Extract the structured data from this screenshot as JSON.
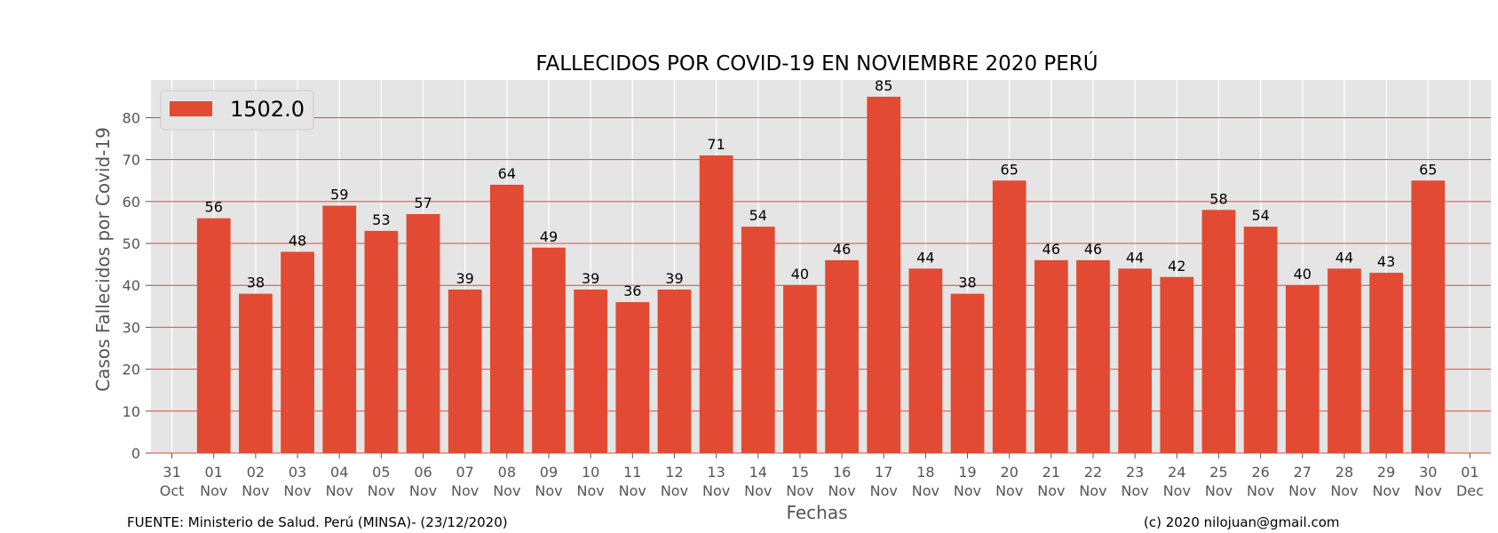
{
  "chart_data": {
    "type": "bar",
    "title": "FALLECIDOS POR COVID-19 EN NOVIEMBRE 2020 PERÚ",
    "xlabel": "Fechas",
    "ylabel": "Casos Fallecidos por Covid-19",
    "ylim": [
      0,
      89
    ],
    "yticks": [
      0,
      10,
      20,
      30,
      40,
      50,
      60,
      70,
      80
    ],
    "grid": true,
    "legend_position": "top-left",
    "tick_labels": [
      {
        "day": "31",
        "month": "Oct"
      },
      {
        "day": "01",
        "month": "Nov"
      },
      {
        "day": "02",
        "month": "Nov"
      },
      {
        "day": "03",
        "month": "Nov"
      },
      {
        "day": "04",
        "month": "Nov"
      },
      {
        "day": "05",
        "month": "Nov"
      },
      {
        "day": "06",
        "month": "Nov"
      },
      {
        "day": "07",
        "month": "Nov"
      },
      {
        "day": "08",
        "month": "Nov"
      },
      {
        "day": "09",
        "month": "Nov"
      },
      {
        "day": "10",
        "month": "Nov"
      },
      {
        "day": "11",
        "month": "Nov"
      },
      {
        "day": "12",
        "month": "Nov"
      },
      {
        "day": "13",
        "month": "Nov"
      },
      {
        "day": "14",
        "month": "Nov"
      },
      {
        "day": "15",
        "month": "Nov"
      },
      {
        "day": "16",
        "month": "Nov"
      },
      {
        "day": "17",
        "month": "Nov"
      },
      {
        "day": "18",
        "month": "Nov"
      },
      {
        "day": "19",
        "month": "Nov"
      },
      {
        "day": "20",
        "month": "Nov"
      },
      {
        "day": "21",
        "month": "Nov"
      },
      {
        "day": "22",
        "month": "Nov"
      },
      {
        "day": "23",
        "month": "Nov"
      },
      {
        "day": "24",
        "month": "Nov"
      },
      {
        "day": "25",
        "month": "Nov"
      },
      {
        "day": "26",
        "month": "Nov"
      },
      {
        "day": "27",
        "month": "Nov"
      },
      {
        "day": "28",
        "month": "Nov"
      },
      {
        "day": "29",
        "month": "Nov"
      },
      {
        "day": "30",
        "month": "Nov"
      },
      {
        "day": "01",
        "month": "Dec"
      }
    ],
    "series": [
      {
        "name": "1502.0",
        "color": "#e24a33",
        "x": [
          "2020-11-01",
          "2020-11-02",
          "2020-11-03",
          "2020-11-04",
          "2020-11-05",
          "2020-11-06",
          "2020-11-07",
          "2020-11-08",
          "2020-11-09",
          "2020-11-10",
          "2020-11-11",
          "2020-11-12",
          "2020-11-13",
          "2020-11-14",
          "2020-11-15",
          "2020-11-16",
          "2020-11-17",
          "2020-11-18",
          "2020-11-19",
          "2020-11-20",
          "2020-11-21",
          "2020-11-22",
          "2020-11-23",
          "2020-11-24",
          "2020-11-25",
          "2020-11-26",
          "2020-11-27",
          "2020-11-28",
          "2020-11-29",
          "2020-11-30"
        ],
        "values": [
          56,
          38,
          48,
          59,
          53,
          57,
          39,
          64,
          49,
          39,
          36,
          39,
          71,
          54,
          40,
          46,
          85,
          44,
          38,
          65,
          46,
          46,
          44,
          42,
          58,
          54,
          40,
          44,
          43,
          65
        ]
      }
    ],
    "footer_left": "FUENTE: Ministerio de Salud. Perú (MINSA)- (23/12/2020)",
    "footer_right": "(c) 2020 nilojuan@gmail.com"
  },
  "colors": {
    "plot_background": "#e5e5e5",
    "grid_vertical": "#ffffff",
    "grid_horizontal": "#e24a33",
    "bar": "#e24a33"
  }
}
